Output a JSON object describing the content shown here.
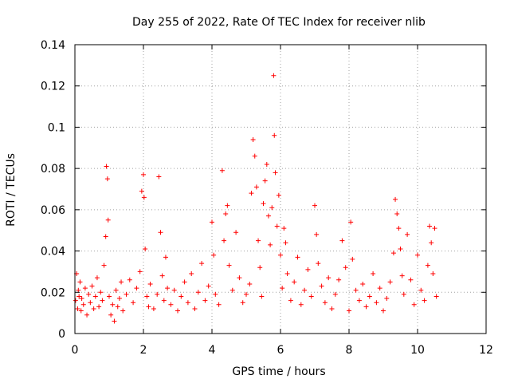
{
  "chart_data": {
    "type": "scatter",
    "title": "Day 255 of 2022, Rate Of TEC Index for receiver nlib",
    "xlabel": "GPS time / hours",
    "ylabel": "ROTI / TECUs",
    "xlim": [
      0,
      12
    ],
    "ylim": [
      0,
      0.14
    ],
    "xticks": [
      0,
      2,
      4,
      6,
      8,
      10,
      12
    ],
    "xtick_labels": [
      "0",
      "2",
      "4",
      "6",
      "8",
      "10",
      "12"
    ],
    "yticks": [
      0,
      0.02,
      0.04,
      0.06,
      0.08,
      0.1,
      0.12,
      0.14
    ],
    "ytick_labels": [
      "0",
      "0.02",
      "0.04",
      "0.06",
      "0.08",
      "0.1",
      "0.12",
      "0.14"
    ],
    "grid": true,
    "marker": "+",
    "color": "#ff0000",
    "series": [
      {
        "name": "ROTI",
        "x": [
          0.02,
          0.05,
          0.08,
          0.1,
          0.12,
          0.15,
          0.18,
          0.2,
          0.25,
          0.3,
          0.35,
          0.4,
          0.45,
          0.5,
          0.55,
          0.6,
          0.65,
          0.7,
          0.75,
          0.8,
          0.85,
          0.9,
          0.92,
          0.95,
          0.97,
          1.0,
          1.05,
          1.1,
          1.15,
          1.2,
          1.25,
          1.3,
          1.35,
          1.4,
          1.5,
          1.6,
          1.7,
          1.8,
          1.9,
          1.95,
          2.0,
          2.02,
          2.05,
          2.1,
          2.15,
          2.2,
          2.3,
          2.4,
          2.45,
          2.5,
          2.55,
          2.6,
          2.65,
          2.7,
          2.8,
          2.9,
          3.0,
          3.1,
          3.2,
          3.3,
          3.4,
          3.5,
          3.6,
          3.7,
          3.8,
          3.9,
          4.0,
          4.05,
          4.1,
          4.2,
          4.3,
          4.35,
          4.4,
          4.45,
          4.5,
          4.6,
          4.7,
          4.8,
          4.9,
          5.0,
          5.1,
          5.15,
          5.2,
          5.25,
          5.3,
          5.35,
          5.4,
          5.45,
          5.5,
          5.55,
          5.6,
          5.65,
          5.7,
          5.75,
          5.8,
          5.82,
          5.85,
          5.9,
          5.95,
          6.0,
          6.05,
          6.1,
          6.15,
          6.2,
          6.3,
          6.4,
          6.5,
          6.6,
          6.7,
          6.8,
          6.9,
          7.0,
          7.05,
          7.1,
          7.2,
          7.3,
          7.4,
          7.5,
          7.6,
          7.7,
          7.8,
          7.9,
          8.0,
          8.05,
          8.1,
          8.2,
          8.3,
          8.4,
          8.5,
          8.6,
          8.7,
          8.8,
          8.9,
          9.0,
          9.1,
          9.2,
          9.3,
          9.35,
          9.4,
          9.45,
          9.5,
          9.55,
          9.6,
          9.7,
          9.8,
          9.9,
          10.0,
          10.1,
          10.2,
          10.3,
          10.35,
          10.4,
          10.45,
          10.5,
          10.55
        ],
        "y": [
          0.016,
          0.029,
          0.012,
          0.021,
          0.018,
          0.025,
          0.011,
          0.017,
          0.014,
          0.022,
          0.009,
          0.019,
          0.015,
          0.023,
          0.012,
          0.018,
          0.027,
          0.013,
          0.02,
          0.016,
          0.033,
          0.047,
          0.081,
          0.075,
          0.055,
          0.018,
          0.009,
          0.014,
          0.006,
          0.021,
          0.013,
          0.017,
          0.025,
          0.011,
          0.019,
          0.026,
          0.015,
          0.022,
          0.03,
          0.069,
          0.077,
          0.066,
          0.041,
          0.018,
          0.013,
          0.024,
          0.012,
          0.019,
          0.076,
          0.049,
          0.028,
          0.016,
          0.037,
          0.022,
          0.014,
          0.021,
          0.011,
          0.018,
          0.025,
          0.015,
          0.029,
          0.012,
          0.02,
          0.034,
          0.016,
          0.023,
          0.054,
          0.038,
          0.019,
          0.014,
          0.079,
          0.045,
          0.058,
          0.062,
          0.033,
          0.021,
          0.049,
          0.027,
          0.015,
          0.019,
          0.024,
          0.068,
          0.094,
          0.086,
          0.071,
          0.045,
          0.032,
          0.018,
          0.063,
          0.074,
          0.082,
          0.057,
          0.043,
          0.061,
          0.125,
          0.096,
          0.078,
          0.052,
          0.067,
          0.038,
          0.022,
          0.051,
          0.044,
          0.029,
          0.016,
          0.025,
          0.037,
          0.014,
          0.021,
          0.031,
          0.018,
          0.062,
          0.048,
          0.034,
          0.023,
          0.015,
          0.027,
          0.012,
          0.019,
          0.026,
          0.045,
          0.032,
          0.011,
          0.054,
          0.036,
          0.021,
          0.016,
          0.024,
          0.013,
          0.018,
          0.029,
          0.015,
          0.022,
          0.011,
          0.017,
          0.025,
          0.039,
          0.065,
          0.058,
          0.051,
          0.041,
          0.028,
          0.019,
          0.048,
          0.026,
          0.014,
          0.038,
          0.021,
          0.016,
          0.033,
          0.052,
          0.044,
          0.029,
          0.051,
          0.018
        ]
      }
    ]
  }
}
